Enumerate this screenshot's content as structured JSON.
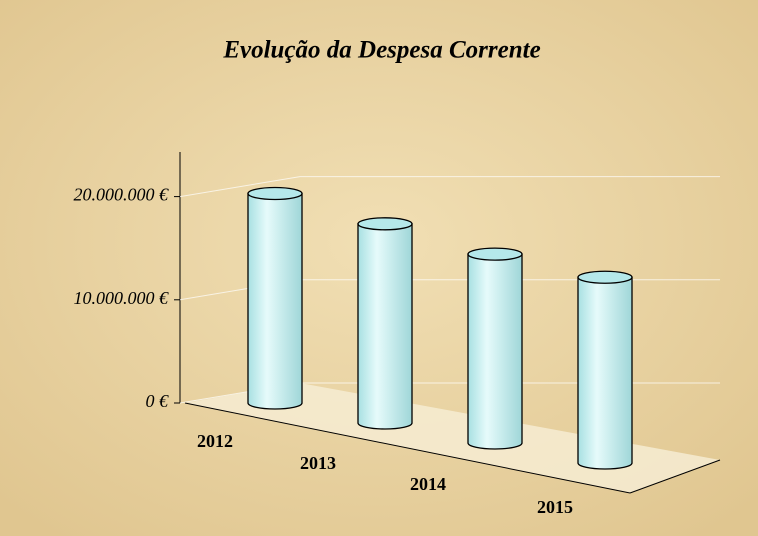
{
  "chart_data": {
    "type": "bar",
    "title": "Evolução da Despesa Corrente",
    "categories": [
      "2012",
      "2013",
      "2014",
      "2015"
    ],
    "values": [
      20300000,
      19300000,
      18300000,
      18000000
    ],
    "color": "#c8f4f4",
    "ylim": [
      0,
      25000000
    ],
    "yticks": [
      {
        "value": 0,
        "label": "0 €"
      },
      {
        "value": 10000000,
        "label": "10.000.000 €"
      },
      {
        "value": 20000000,
        "label": "20.000.000 €"
      }
    ],
    "grid": true
  }
}
